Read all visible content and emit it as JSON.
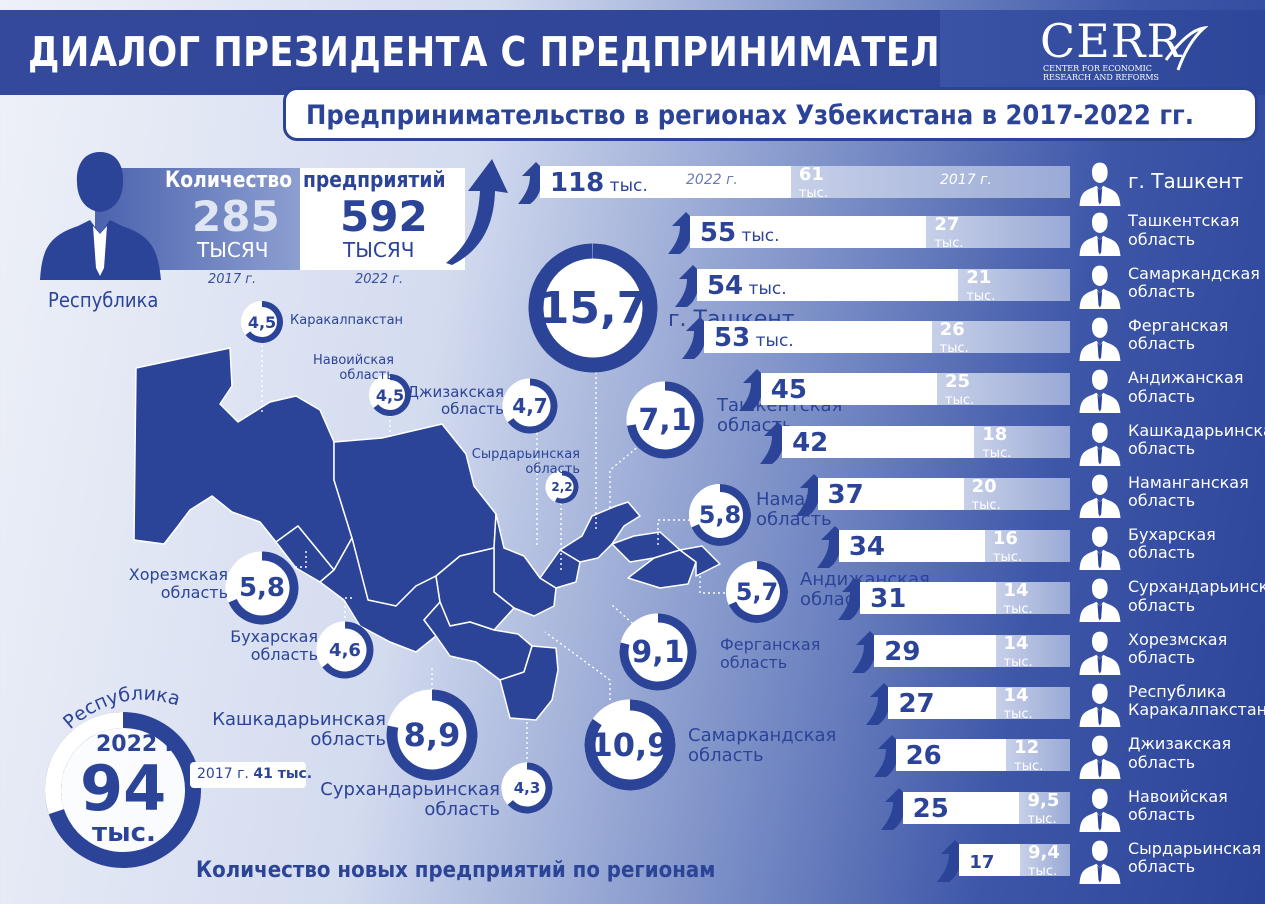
{
  "header": {
    "title": "ДИАЛОГ ПРЕЗИДЕНТА С ПРЕДПРИНИМАТЕЛЯМИ",
    "subtitle": "Предпринимательство в регионах Узбекистана в 2017-2022 гг.",
    "logo_text": "CERR",
    "logo_sub1": "CENTER FOR ECONOMIC",
    "logo_sub2": "RESEARCH AND REFORMS"
  },
  "summary": {
    "label_left": "Количество",
    "label_right": "предприятий",
    "value_2017": "285",
    "unit_2017": "ТЫСЯЧ",
    "year_2017": "2017 г.",
    "value_2022": "592",
    "unit_2022": "ТЫСЯЧ",
    "year_2022": "2022 г.",
    "republic_label": "Республика",
    "person_icon": "person-icon"
  },
  "republic_new": {
    "arc_label": "Республика",
    "year": "2022 г.",
    "value": "94",
    "unit": "тыс.",
    "prev_label": "2017 г.",
    "prev_value": "41 тыс.",
    "share": 0.7
  },
  "footer": "Количество новых предприятий по регионам",
  "colors": {
    "primary": "#2c4498",
    "light": "#ffffff",
    "muted": "#b9c4e3"
  },
  "new_by_region": [
    {
      "value": "15,7",
      "label1": "г. Ташкент",
      "label2": ""
    },
    {
      "value": "7,1",
      "label1": "Ташкентская",
      "label2": "область"
    },
    {
      "value": "5,8",
      "label1": "Наманганская",
      "label2": "область"
    },
    {
      "value": "5,7",
      "label1": "Андижанская",
      "label2": "область"
    },
    {
      "value": "9,1",
      "label1": "Ферганская",
      "label2": "область"
    },
    {
      "value": "10,9",
      "label1": "Самаркандская",
      "label2": "область"
    },
    {
      "value": "8,9",
      "label1": "Кашкадарьинская",
      "label2": "область"
    },
    {
      "value": "4,3",
      "label1": "Сурхандарьинская",
      "label2": "область"
    },
    {
      "value": "4,6",
      "label1": "Бухарская",
      "label2": "область"
    },
    {
      "value": "5,8",
      "label1": "Хорезмская",
      "label2": "область"
    },
    {
      "value": "4,5",
      "label1": "Каракалпакстан",
      "label2": ""
    },
    {
      "value": "4,5",
      "label1": "Навоийская",
      "label2": "область"
    },
    {
      "value": "4,7",
      "label1": "Джизакская",
      "label2": "область"
    },
    {
      "value": "2,2",
      "label1": "Сырдарьинская",
      "label2": "область"
    }
  ],
  "enterprises_by_region": {
    "year_2022_label": "2022 г.",
    "year_2017_label": "2017 г.",
    "rows": [
      {
        "v2022": "118",
        "u2022": "тыс.",
        "v2017": "61",
        "u2017": "тыс.",
        "name1": "г. Ташкент",
        "name2": "",
        "n2022": 118,
        "n2017": 61
      },
      {
        "v2022": "55",
        "u2022": "тыс.",
        "v2017": "27",
        "u2017": "тыс.",
        "name1": "Ташкентская",
        "name2": "область",
        "n2022": 55,
        "n2017": 27
      },
      {
        "v2022": "54",
        "u2022": "тыс.",
        "v2017": "21",
        "u2017": "тыс.",
        "name1": "Самаркандская",
        "name2": "область",
        "n2022": 54,
        "n2017": 21
      },
      {
        "v2022": "53",
        "u2022": "тыс.",
        "v2017": "26",
        "u2017": "тыс.",
        "name1": "Ферганская",
        "name2": "область",
        "n2022": 53,
        "n2017": 26
      },
      {
        "v2022": "45",
        "u2022": "",
        "v2017": "25",
        "u2017": "тыс.",
        "name1": "Андижанская",
        "name2": "область",
        "n2022": 45,
        "n2017": 25
      },
      {
        "v2022": "42",
        "u2022": "",
        "v2017": "18",
        "u2017": "тыс.",
        "name1": "Кашкадарьинская",
        "name2": "область",
        "n2022": 42,
        "n2017": 18
      },
      {
        "v2022": "37",
        "u2022": "",
        "v2017": "20",
        "u2017": "тыс.",
        "name1": "Наманганская",
        "name2": "область",
        "n2022": 37,
        "n2017": 20
      },
      {
        "v2022": "34",
        "u2022": "",
        "v2017": "16",
        "u2017": "тыс.",
        "name1": "Бухарская",
        "name2": "область",
        "n2022": 34,
        "n2017": 16
      },
      {
        "v2022": "31",
        "u2022": "",
        "v2017": "14",
        "u2017": "тыс.",
        "name1": "Сурхандарьинская",
        "name2": "область",
        "n2022": 31,
        "n2017": 14
      },
      {
        "v2022": "29",
        "u2022": "",
        "v2017": "14",
        "u2017": "тыс.",
        "name1": "Хорезмская",
        "name2": "область",
        "n2022": 29,
        "n2017": 14
      },
      {
        "v2022": "27",
        "u2022": "",
        "v2017": "14",
        "u2017": "тыс.",
        "name1": "Республика",
        "name2": "Каракалпакстан",
        "n2022": 27,
        "n2017": 14
      },
      {
        "v2022": "26",
        "u2022": "",
        "v2017": "12",
        "u2017": "тыс.",
        "name1": "Джизакская",
        "name2": "область",
        "n2022": 26,
        "n2017": 12
      },
      {
        "v2022": "25",
        "u2022": "",
        "v2017": "9,5",
        "u2017": "тыс.",
        "name1": "Навоийская",
        "name2": "область",
        "n2022": 25,
        "n2017": 9.5
      },
      {
        "v2022": "17",
        "u2022": "",
        "v2017": "9,4",
        "u2017": "тыс.",
        "name1": "Сырдарьинская",
        "name2": "область",
        "n2022": 17,
        "n2017": 9.4
      }
    ]
  }
}
